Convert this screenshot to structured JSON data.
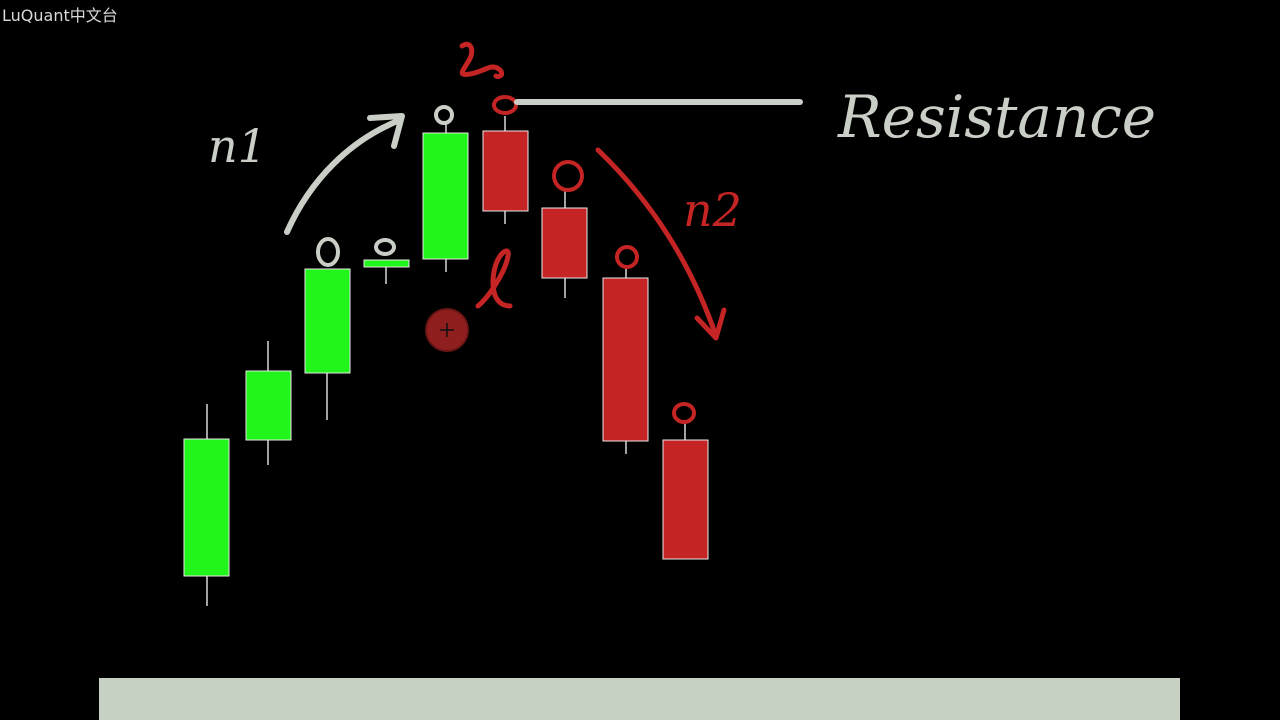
{
  "watermark": "LuQuant中文台",
  "labels": {
    "n1": "n1",
    "n2": "n2",
    "resistance": "Resistance",
    "h_mark": "h",
    "l_mark": "l"
  },
  "colors": {
    "background": "#000000",
    "bull": "#22f51a",
    "bear": "#c42424",
    "chalk": "#c9cfc6",
    "red_ink": "#c42424",
    "bottom_bar": "#c6d0c3"
  },
  "candles": [
    {
      "type": "bull"
    },
    {
      "type": "bull"
    },
    {
      "type": "bull"
    },
    {
      "type": "bull"
    },
    {
      "type": "bull"
    },
    {
      "type": "bear"
    },
    {
      "type": "bear"
    },
    {
      "type": "bear"
    },
    {
      "type": "bear"
    }
  ]
}
